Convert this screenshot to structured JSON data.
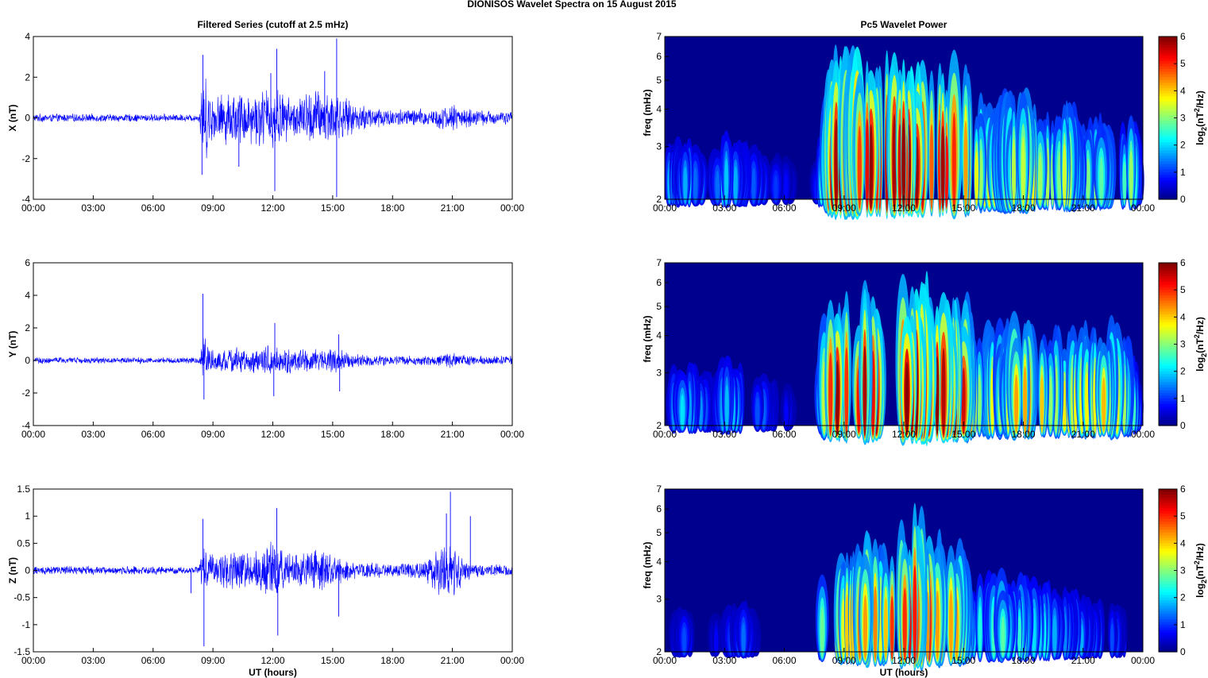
{
  "figure": {
    "title": "DIONISOS Wavelet Spectra on 15 August    2015"
  },
  "colors": {
    "trace": "#0000ff",
    "bg_power": "#00008f"
  },
  "chart_data": [
    {
      "type": "line",
      "panel": "filtered-x",
      "title": "Filtered Series (cutoff at 2.5 mHz)",
      "xlabel": "",
      "ylabel": "X (nT)",
      "xticks": [
        "00:00",
        "03:00",
        "06:00",
        "09:00",
        "12:00",
        "15:00",
        "18:00",
        "21:00",
        "00:00"
      ],
      "xlim": [
        0,
        24
      ],
      "ylim": [
        -4,
        4
      ],
      "yticks": [
        "4",
        "2",
        "0",
        "-2",
        "-4"
      ],
      "ytick_values": [
        4,
        2,
        0,
        -2,
        -4
      ],
      "envelope": {
        "t": [
          0,
          8.3,
          8.5,
          9,
          10,
          11,
          12,
          13,
          14,
          15,
          16,
          18,
          20,
          21,
          22,
          23,
          24
        ],
        "amp": [
          0.22,
          0.2,
          2.6,
          1.2,
          1.5,
          1.4,
          1.8,
          1.0,
          1.6,
          1.5,
          0.8,
          0.5,
          0.5,
          0.75,
          0.45,
          0.4,
          0.35
        ]
      },
      "spikes": [
        {
          "t": 8.5,
          "v": 3.1
        },
        {
          "t": 8.45,
          "v": -2.8
        },
        {
          "t": 12.2,
          "v": 3.4
        },
        {
          "t": 12.1,
          "v": -3.6
        },
        {
          "t": 15.2,
          "v": 3.9
        },
        {
          "t": 15.2,
          "v": -3.9
        },
        {
          "t": 14.6,
          "v": 2.3
        },
        {
          "t": 11.9,
          "v": 2.2
        },
        {
          "t": 10.3,
          "v": -2.4
        }
      ]
    },
    {
      "type": "heatmap",
      "panel": "power-x",
      "title": "Pc5 Wavelet Power",
      "xlabel": "",
      "ylabel": "freq (mHz)",
      "xticks": [
        "00:00",
        "03:00",
        "06:00",
        "09:00",
        "12:00",
        "15:00",
        "18:00",
        "21:00",
        "00:00"
      ],
      "xlim": [
        0,
        24
      ],
      "ylim": [
        2,
        7
      ],
      "yscale": "log",
      "yticks": [
        "7",
        "6",
        "5",
        "4",
        "3",
        "2"
      ],
      "ytick_values": [
        7,
        6,
        5,
        4,
        3,
        2
      ],
      "colorbar": {
        "label": "log2(nT2/Hz)",
        "label_base": "log",
        "label_sub": "2",
        "label_inner": "(nT",
        "label_sup": "2",
        "label_tail": "/Hz)",
        "ticks": [
          "6",
          "5",
          "4",
          "3",
          "2",
          "1",
          "0"
        ],
        "range": [
          0,
          6
        ]
      },
      "intensity": {
        "t": [
          0,
          1,
          2.5,
          3,
          7.5,
          8,
          8.3,
          9,
          10,
          11,
          12,
          13,
          14,
          15,
          15.5,
          16,
          17,
          18,
          19,
          20,
          21,
          22,
          23,
          23.5,
          24
        ],
        "level": [
          1.5,
          1.8,
          1.3,
          2.0,
          0.3,
          3.0,
          5.6,
          5.7,
          5.8,
          5.6,
          5.8,
          5.4,
          5.6,
          5.2,
          4.0,
          3.5,
          3.7,
          4.0,
          3.3,
          3.5,
          3.0,
          3.0,
          2.6,
          3.2,
          0.4
        ]
      }
    },
    {
      "type": "line",
      "panel": "filtered-y",
      "title": "",
      "xlabel": "",
      "ylabel": "Y (nT)",
      "xticks": [
        "00:00",
        "03:00",
        "06:00",
        "09:00",
        "12:00",
        "15:00",
        "18:00",
        "21:00",
        "00:00"
      ],
      "xlim": [
        0,
        24
      ],
      "ylim": [
        -4,
        6
      ],
      "yticks": [
        "6",
        "4",
        "2",
        "0",
        "-2",
        "-4"
      ],
      "ytick_values": [
        6,
        4,
        2,
        0,
        -2,
        -4
      ],
      "envelope": {
        "t": [
          0,
          8.3,
          8.5,
          9,
          10,
          11,
          12,
          13,
          14,
          15,
          16,
          18,
          20,
          21,
          22,
          23,
          24
        ],
        "amp": [
          0.22,
          0.2,
          1.8,
          0.7,
          0.9,
          0.8,
          1.1,
          0.8,
          0.75,
          0.9,
          0.45,
          0.35,
          0.3,
          0.5,
          0.35,
          0.3,
          0.3
        ]
      },
      "spikes": [
        {
          "t": 8.5,
          "v": 4.1
        },
        {
          "t": 8.55,
          "v": -2.4
        },
        {
          "t": 12.1,
          "v": 2.3
        },
        {
          "t": 12.05,
          "v": -2.2
        },
        {
          "t": 15.3,
          "v": 1.6
        },
        {
          "t": 15.35,
          "v": -1.9
        }
      ]
    },
    {
      "type": "heatmap",
      "panel": "power-y",
      "title": "",
      "xlabel": "",
      "ylabel": "freq (mHz)",
      "xticks": [
        "00:00",
        "03:00",
        "06:00",
        "09:00",
        "12:00",
        "15:00",
        "18:00",
        "21:00",
        "00:00"
      ],
      "xlim": [
        0,
        24
      ],
      "ylim": [
        2,
        7
      ],
      "yscale": "log",
      "yticks": [
        "7",
        "6",
        "5",
        "4",
        "3",
        "2"
      ],
      "ytick_values": [
        7,
        6,
        5,
        4,
        3,
        2
      ],
      "colorbar": {
        "label": "log2(nT2/Hz)",
        "label_base": "log",
        "label_sub": "2",
        "label_inner": "(nT",
        "label_sup": "2",
        "label_tail": "/Hz)",
        "ticks": [
          "6",
          "5",
          "4",
          "3",
          "2",
          "1",
          "0"
        ],
        "range": [
          0,
          6
        ]
      },
      "intensity": {
        "t": [
          0,
          1,
          2.5,
          3,
          4,
          7.5,
          8.1,
          8.3,
          9,
          10,
          11,
          12,
          13,
          14,
          15,
          15.5,
          16,
          17,
          18,
          19,
          20,
          21,
          22,
          23,
          23.5,
          24
        ],
        "level": [
          1.3,
          2.0,
          1.2,
          2.2,
          1.6,
          0.3,
          4.5,
          5.8,
          4.8,
          5.2,
          5.0,
          5.8,
          5.6,
          5.4,
          5.2,
          3.8,
          3.5,
          3.6,
          4.2,
          3.6,
          3.4,
          3.6,
          4.0,
          3.3,
          2.5,
          0.4
        ]
      }
    },
    {
      "type": "line",
      "panel": "filtered-z",
      "title": "",
      "xlabel": "UT (hours)",
      "ylabel": "Z (nT)",
      "xticks": [
        "00:00",
        "03:00",
        "06:00",
        "09:00",
        "12:00",
        "15:00",
        "18:00",
        "21:00",
        "00:00"
      ],
      "xlim": [
        0,
        24
      ],
      "ylim": [
        -1.5,
        1.5
      ],
      "yticks": [
        "1.5",
        "1",
        "0.5",
        "0",
        "-0.5",
        "-1",
        "-1.5"
      ],
      "ytick_values": [
        1.5,
        1,
        0.5,
        0,
        -0.5,
        -1,
        -1.5
      ],
      "envelope": {
        "t": [
          0,
          8.3,
          8.5,
          9,
          10,
          11,
          12,
          13,
          14,
          15,
          16,
          18,
          19.5,
          20.5,
          21,
          21.5,
          22,
          23,
          24
        ],
        "amp": [
          0.09,
          0.08,
          0.5,
          0.3,
          0.4,
          0.35,
          0.6,
          0.3,
          0.4,
          0.35,
          0.18,
          0.13,
          0.2,
          0.55,
          0.5,
          0.3,
          0.15,
          0.12,
          0.12
        ]
      },
      "spikes": [
        {
          "t": 8.5,
          "v": 0.95
        },
        {
          "t": 8.55,
          "v": -1.4
        },
        {
          "t": 12.2,
          "v": 1.15
        },
        {
          "t": 12.25,
          "v": -1.2
        },
        {
          "t": 20.9,
          "v": 1.45
        },
        {
          "t": 20.7,
          "v": 1.05
        },
        {
          "t": 21.9,
          "v": 1.0
        },
        {
          "t": 15.3,
          "v": -0.85
        },
        {
          "t": 7.9,
          "v": -0.42
        }
      ]
    },
    {
      "type": "heatmap",
      "panel": "power-z",
      "title": "",
      "xlabel": "UT (hours)",
      "ylabel": "freq (mHz)",
      "xticks": [
        "00:00",
        "03:00",
        "06:00",
        "09:00",
        "12:00",
        "15:00",
        "18:00",
        "21:00",
        "00:00"
      ],
      "xlim": [
        0,
        24
      ],
      "ylim": [
        2,
        7
      ],
      "yscale": "log",
      "yticks": [
        "7",
        "6",
        "5",
        "4",
        "3",
        "2"
      ],
      "ytick_values": [
        7,
        6,
        5,
        4,
        3,
        2
      ],
      "colorbar": {
        "label": "log2(nT2/Hz)",
        "label_base": "log",
        "label_sub": "2",
        "label_inner": "(nT",
        "label_sup": "2",
        "label_tail": "/Hz)",
        "ticks": [
          "6",
          "5",
          "4",
          "3",
          "2",
          "1",
          "0"
        ],
        "range": [
          0,
          6
        ]
      },
      "intensity": {
        "t": [
          0,
          1,
          1.5,
          3,
          4,
          5,
          7.5,
          8.3,
          8.6,
          9,
          10,
          11,
          12,
          13,
          14,
          15,
          15.5,
          16,
          17,
          18,
          19,
          20,
          21,
          22,
          23,
          24
        ],
        "level": [
          0.3,
          1.2,
          0.4,
          1.0,
          1.3,
          0.4,
          0.3,
          5.0,
          3.5,
          4.2,
          4.6,
          4.0,
          5.5,
          5.2,
          4.4,
          4.0,
          2.2,
          2.4,
          2.6,
          2.4,
          2.2,
          1.8,
          1.6,
          1.2,
          1.0,
          0.4
        ]
      }
    }
  ]
}
